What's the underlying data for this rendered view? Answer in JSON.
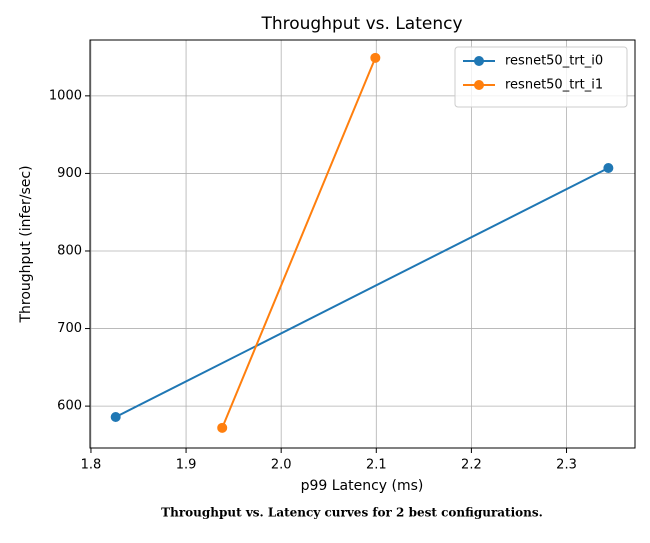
{
  "chart_data": {
    "type": "line",
    "title": "Throughput vs. Latency",
    "x_label": "p99 Latency (ms)",
    "y_label": "Throughput (infer/sec)",
    "caption": "Throughput vs. Latency curves for 2 best configurations.",
    "series": [
      {
        "name": "resnet50_trt_i0",
        "color": "#1f77b4",
        "x": [
          1.826,
          2.344
        ],
        "values": [
          586,
          907
        ]
      },
      {
        "name": "resnet50_trt_i1",
        "color": "#ff7f0e",
        "x": [
          1.938,
          2.099
        ],
        "values": [
          572,
          1049
        ]
      }
    ],
    "xlim": [
      1.799,
      2.372
    ],
    "xticks": [
      1.8,
      1.9,
      {
        "value": 2,
        "label": "2.0"
      },
      2.1,
      2.2,
      2.3
    ],
    "ylim": [
      546,
      1072
    ],
    "yticks": [
      600,
      700,
      800,
      900,
      1000
    ],
    "grid": true,
    "legend": "upper right"
  }
}
